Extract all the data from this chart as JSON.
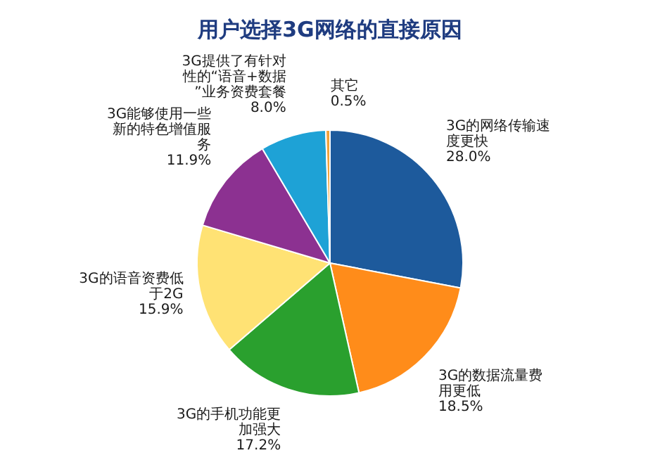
{
  "chart_data": {
    "type": "pie",
    "title": "用户选择3G网络的直接原因",
    "categories": [
      "3G的网络传输速度更快",
      "3G的数据流量费用更低",
      "3G的手机功能更加强大",
      "3G的语音资费低于2G",
      "3G能够使用一些新的特色增值服务",
      "3G提供了有针对性的“语音+数据”业务资费套餐",
      "其它"
    ],
    "values": [
      28.0,
      18.5,
      17.2,
      15.9,
      11.9,
      8.0,
      0.5
    ],
    "colors": [
      "#1d5a9c",
      "#ff8c1a",
      "#2aa02e",
      "#ffe274",
      "#8c3191",
      "#1ea2d6",
      "#f2a23a"
    ],
    "value_labels": [
      "28.0%",
      "18.5%",
      "17.2%",
      "15.9%",
      "11.9%",
      "8.0%",
      "0.5%"
    ],
    "legend": false
  }
}
